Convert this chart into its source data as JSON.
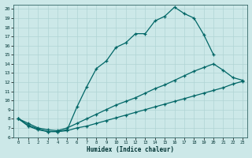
{
  "xlabel": "Humidex (Indice chaleur)",
  "bg_color": "#cce8e8",
  "line_color": "#006666",
  "grid_color": "#b0d4d4",
  "xlim": [
    -0.5,
    23.5
  ],
  "ylim": [
    6,
    20.5
  ],
  "xticks": [
    0,
    1,
    2,
    3,
    4,
    5,
    6,
    7,
    8,
    9,
    10,
    11,
    12,
    13,
    14,
    15,
    16,
    17,
    18,
    19,
    20,
    21,
    22,
    23
  ],
  "yticks": [
    6,
    7,
    8,
    9,
    10,
    11,
    12,
    13,
    14,
    15,
    16,
    17,
    18,
    19,
    20
  ],
  "curve1_x": [
    0,
    1,
    2,
    3,
    4,
    5,
    6,
    7,
    8,
    9,
    10,
    11,
    12,
    13,
    14,
    15,
    16,
    17,
    18,
    19,
    20
  ],
  "curve1_y": [
    8.0,
    7.2,
    6.8,
    6.6,
    6.6,
    6.8,
    9.3,
    11.5,
    13.5,
    14.3,
    15.8,
    16.3,
    17.3,
    17.3,
    18.7,
    19.2,
    20.2,
    19.5,
    19.0,
    17.2,
    15.0
  ],
  "curve2_x": [
    0,
    1,
    2,
    3,
    4,
    5,
    6,
    7,
    8,
    9,
    10,
    11,
    12,
    13,
    14,
    15,
    16,
    17,
    18,
    19,
    20,
    21,
    22,
    23
  ],
  "curve2_y": [
    8.0,
    7.5,
    7.0,
    6.8,
    6.7,
    7.0,
    7.5,
    8.0,
    8.5,
    9.0,
    9.5,
    9.9,
    10.3,
    10.8,
    11.3,
    11.7,
    12.2,
    12.7,
    13.2,
    13.6,
    14.0,
    13.3,
    12.5,
    12.2
  ],
  "curve3_x": [
    0,
    1,
    2,
    3,
    4,
    5,
    6,
    7,
    8,
    9,
    10,
    11,
    12,
    13,
    14,
    15,
    16,
    17,
    18,
    19,
    20,
    21,
    22,
    23
  ],
  "curve3_y": [
    8.0,
    7.3,
    6.9,
    6.6,
    6.6,
    6.7,
    7.0,
    7.2,
    7.5,
    7.8,
    8.1,
    8.4,
    8.7,
    9.0,
    9.3,
    9.6,
    9.9,
    10.2,
    10.5,
    10.8,
    11.1,
    11.4,
    11.8,
    12.1
  ]
}
